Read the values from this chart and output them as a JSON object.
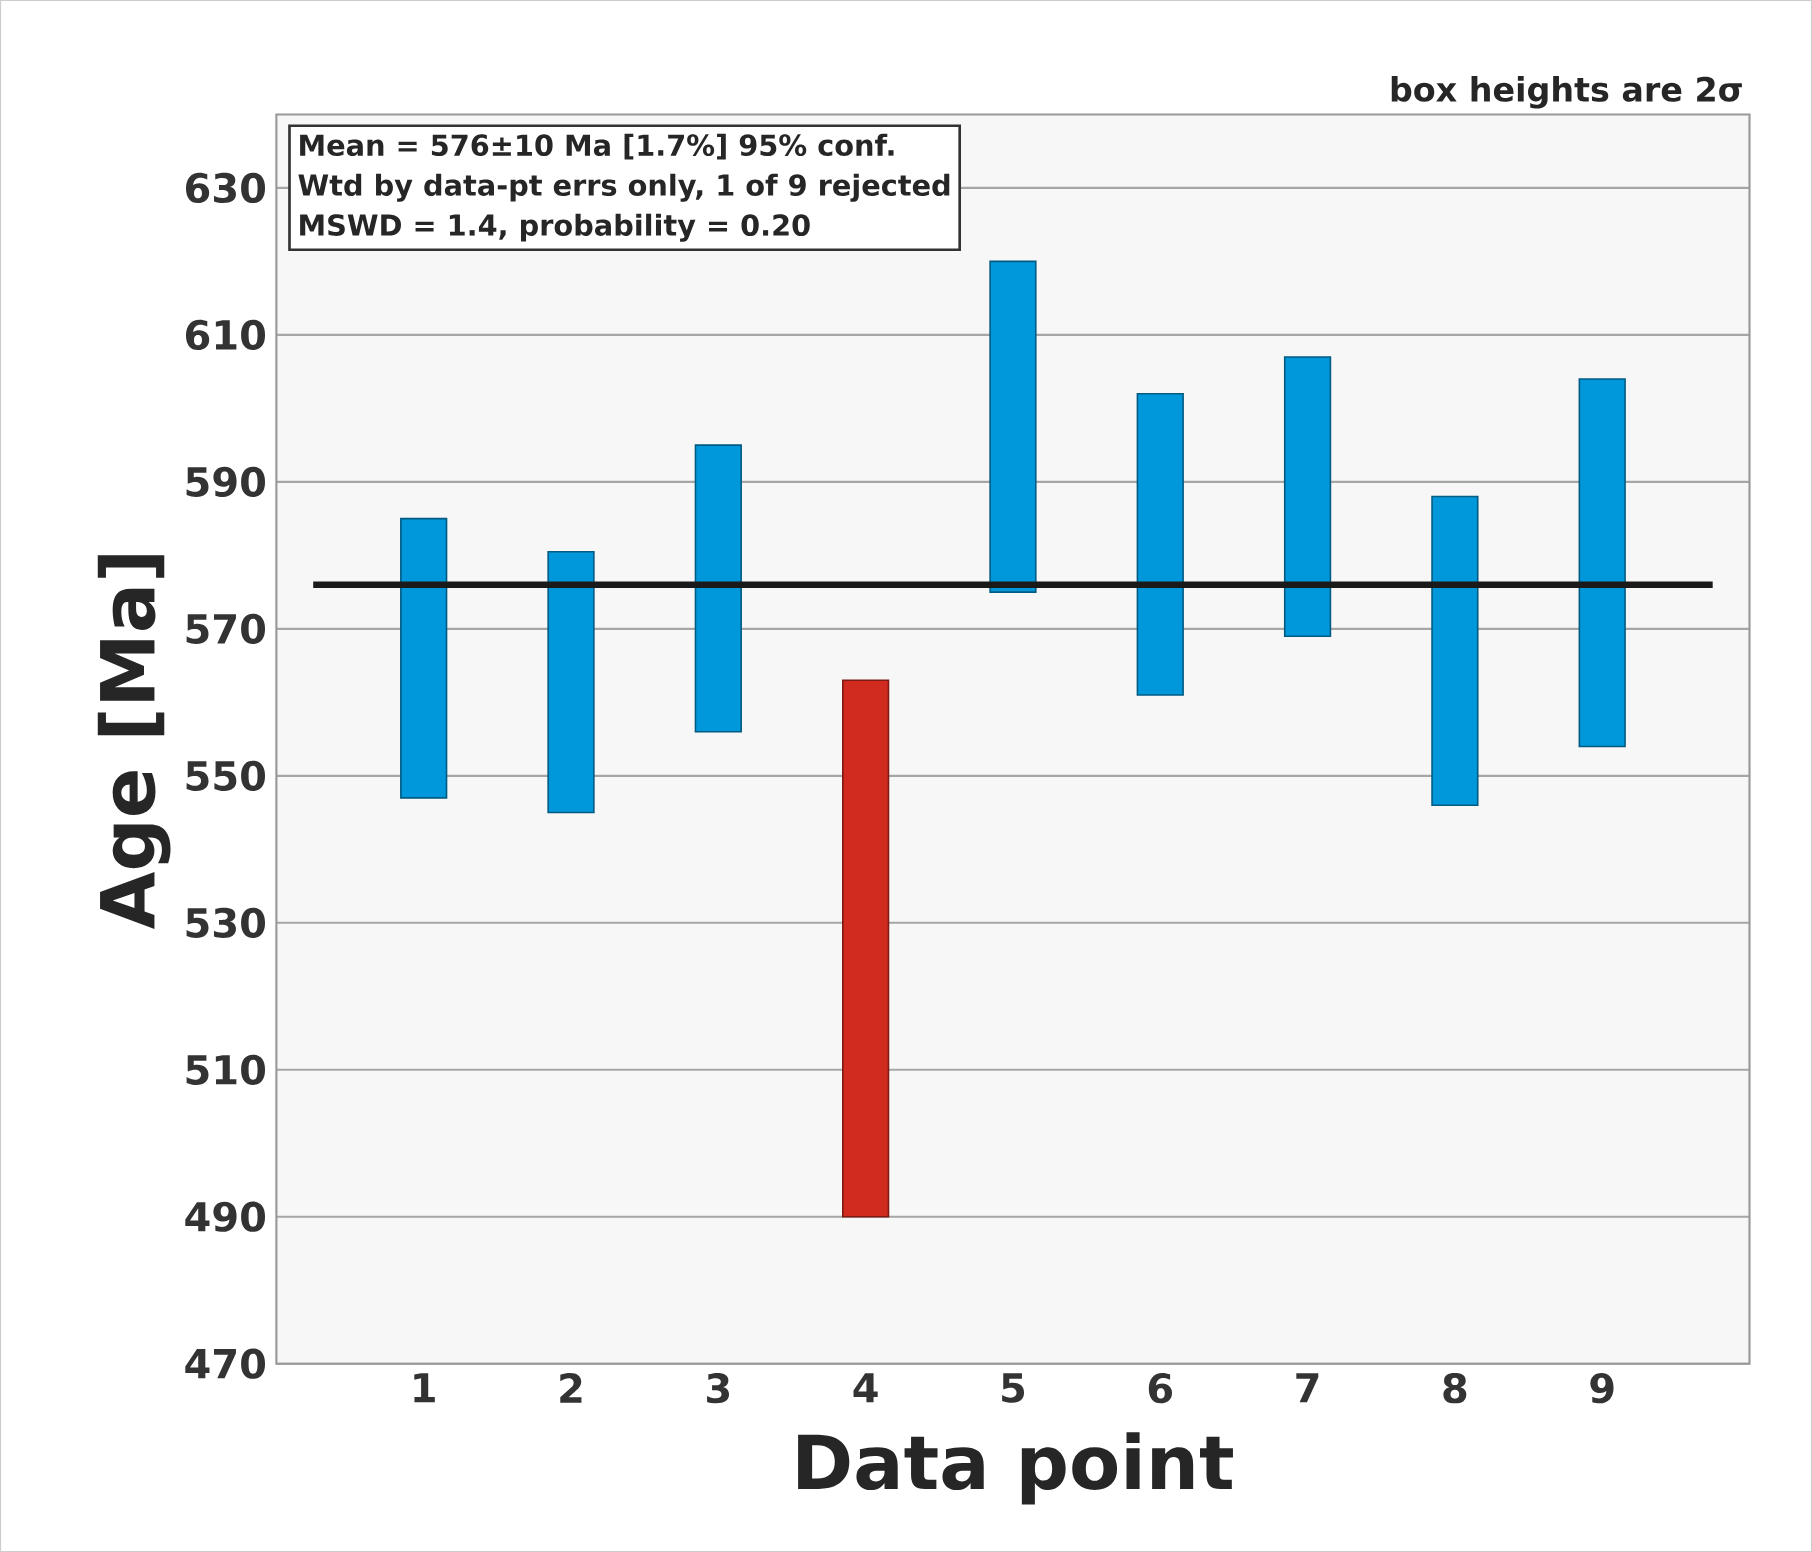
{
  "chart_data": {
    "type": "bar",
    "xlabel": "Data point",
    "ylabel": "Age [Ma]",
    "categories": [
      "1",
      "2",
      "3",
      "4",
      "5",
      "6",
      "7",
      "8",
      "9"
    ],
    "base": [
      547,
      545,
      556,
      490,
      575,
      561,
      569,
      546,
      554
    ],
    "values": [
      38,
      35.5,
      39,
      73,
      45,
      41,
      38,
      42,
      50
    ],
    "colors": [
      "#0098da",
      "#0098da",
      "#0098da",
      "#d12b1f",
      "#0098da",
      "#0098da",
      "#0098da",
      "#0098da",
      "#0098da"
    ],
    "ylim": [
      470,
      640
    ],
    "yticks": [
      470,
      490,
      510,
      530,
      550,
      570,
      590,
      610,
      630
    ],
    "grid": "y",
    "ref_lines": [
      {
        "axis": "y",
        "value": 576,
        "color": "#1a1a1a"
      }
    ],
    "annotations": [
      "Mean = 576±10 Ma [1.7%] 95% conf.",
      "Wtd by data-pt errs only, 1 of 9 rejected",
      "MSWD = 1.4, probability = 0.20",
      "box heights are 2σ"
    ]
  }
}
